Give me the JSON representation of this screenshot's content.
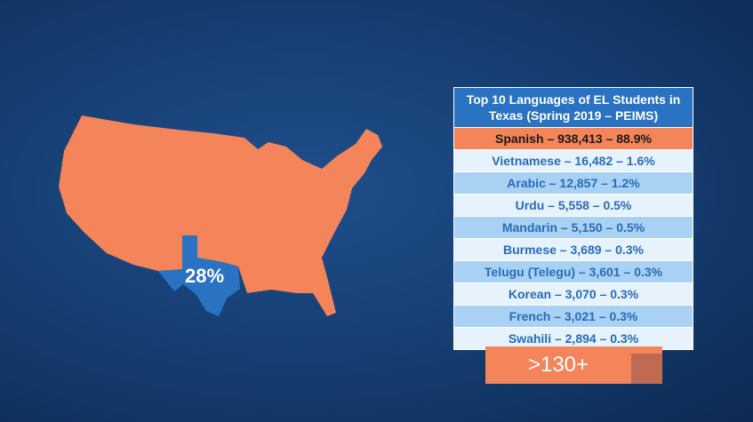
{
  "map": {
    "label": "28%"
  },
  "table": {
    "title": "Top 10 Languages of EL Students in Texas (Spring 2019 – PEIMS)",
    "rows": [
      "Spanish – 938,413 – 88.9%",
      "Vietnamese – 16,482 – 1.6%",
      "Arabic – 12,857 – 1.2%",
      "Urdu – 5,558 – 0.5%",
      "Mandarin – 5,150 – 0.5%",
      "Burmese – 3,689 – 0.3%",
      "Telugu (Telegu) – 3,601 – 0.3%",
      "Korean – 3,070 – 0.3%",
      "French – 3,021 – 0.3%",
      "Swahili – 2,894 – 0.3%"
    ]
  },
  "footer": {
    "label": ">130+"
  }
}
